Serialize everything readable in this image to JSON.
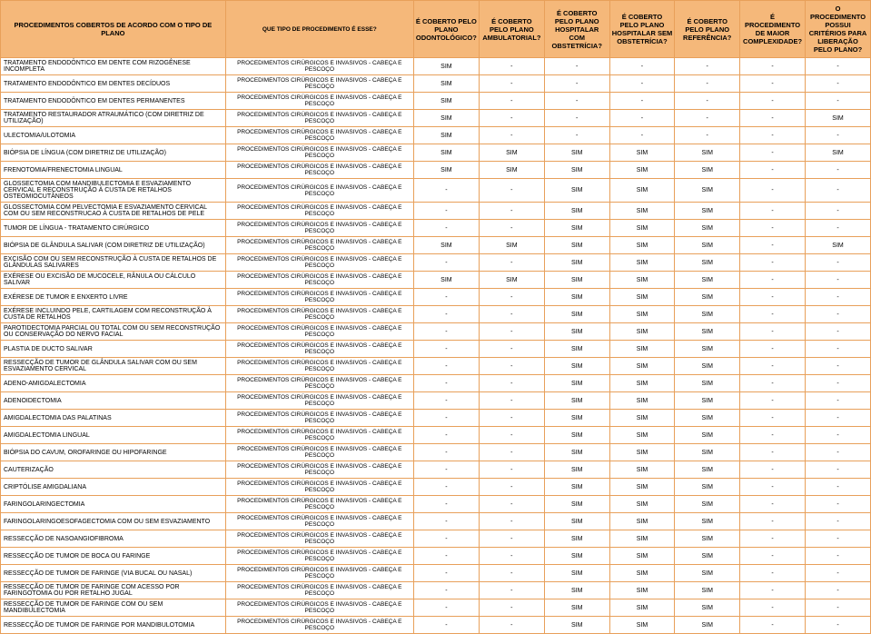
{
  "headers": [
    "PROCEDIMENTOS COBERTOS DE ACORDO COM O TIPO DE PLANO",
    "QUE TIPO DE PROCEDIMENTO É ESSE?",
    "É COBERTO PELO PLANO ODONTOLÓGICO?",
    "É COBERTO PELO PLANO AMBULATORIAL?",
    "É COBERTO PELO PLANO HOSPITALAR COM OBSTETRÍCIA?",
    "É COBERTO PELO PLANO HOSPITALAR SEM OBSTETRÍCIA?",
    "É COBERTO PELO PLANO REFERÊNCIA?",
    "É PROCEDIMENTO DE MAIOR COMPLEXIDADE?",
    "O PROCEDIMENTO POSSUI CRITÉRIOS PARA LIBERAÇÃO PELO PLANO?"
  ],
  "typeText": "PROCEDIMENTOS CIRÚRGICOS E INVASIVOS - CABEÇA E PESCOÇO",
  "rows": [
    {
      "p": "TRATAMENTO ENDODÔNTICO EM DENTE COM RIZOGÊNESE INCOMPLETA",
      "c": [
        "SIM",
        "-",
        "-",
        "-",
        "-",
        "-",
        "-"
      ]
    },
    {
      "p": "TRATAMENTO ENDODÔNTICO EM DENTES DECÍDUOS",
      "c": [
        "SIM",
        "-",
        "-",
        "-",
        "-",
        "-",
        "-"
      ]
    },
    {
      "p": "TRATAMENTO ENDODÔNTICO EM DENTES PERMANENTES",
      "c": [
        "SIM",
        "-",
        "-",
        "-",
        "-",
        "-",
        "-"
      ]
    },
    {
      "p": "TRATAMENTO RESTAURADOR ATRAUMÁTICO (COM DIRETRIZ DE UTILIZAÇÃO)",
      "c": [
        "SIM",
        "-",
        "-",
        "-",
        "-",
        "-",
        "SIM"
      ]
    },
    {
      "p": "ULECTOMIA/ULOTOMIA",
      "c": [
        "SIM",
        "-",
        "-",
        "-",
        "-",
        "-",
        "-"
      ]
    },
    {
      "p": "BIÓPSIA DE LÍNGUA (COM DIRETRIZ DE UTILIZAÇÃO)",
      "c": [
        "SIM",
        "SIM",
        "SIM",
        "SIM",
        "SIM",
        "-",
        "SIM"
      ]
    },
    {
      "p": "FRENOTOMIA/FRENECTOMIA  LINGUAL",
      "c": [
        "SIM",
        "SIM",
        "SIM",
        "SIM",
        "SIM",
        "-",
        "-"
      ]
    },
    {
      "p": "GLOSSECTOMIA COM MANDIBULECTOMIA E ESVAZIAMENTO CERVICAL E RECONSTRUÇÃO À CUSTA DE RETALHOS OSTEOMIOCUTÂNEOS",
      "c": [
        "-",
        "-",
        "SIM",
        "SIM",
        "SIM",
        "-",
        "-"
      ]
    },
    {
      "p": "GLOSSECTOMIA COM PELVECTOMIA E ESVAZIAMENTO CERVICAL COM OU SEM RECONSTRUCAO À CUSTA DE RETALHOS DE PELE",
      "c": [
        "-",
        "-",
        "SIM",
        "SIM",
        "SIM",
        "-",
        "-"
      ]
    },
    {
      "p": "TUMOR DE LÍNGUA - TRATAMENTO CIRÚRGICO",
      "c": [
        "-",
        "-",
        "SIM",
        "SIM",
        "SIM",
        "-",
        "-"
      ]
    },
    {
      "p": "BIÓPSIA DE GLÂNDULA SALIVAR (COM DIRETRIZ DE UTILIZAÇÃO)",
      "c": [
        "SIM",
        "SIM",
        "SIM",
        "SIM",
        "SIM",
        "-",
        "SIM"
      ]
    },
    {
      "p": "EXCISÃO COM OU SEM RECONSTRUÇÃO À CUSTA DE RETALHOS DE GLÂNDULAS SALIVARES",
      "c": [
        "-",
        "-",
        "SIM",
        "SIM",
        "SIM",
        "-",
        "-"
      ]
    },
    {
      "p": "EXÉRESE OU EXCISÃO DE MUCOCELE, RÂNULA OU CÁLCULO SALIVAR",
      "c": [
        "SIM",
        "SIM",
        "SIM",
        "SIM",
        "SIM",
        "-",
        "-"
      ]
    },
    {
      "p": "EXÉRESE DE TUMOR E ENXERTO LIVRE",
      "c": [
        "-",
        "-",
        "SIM",
        "SIM",
        "SIM",
        "-",
        "-"
      ]
    },
    {
      "p": "EXÉRESE INCLUINDO PELE, CARTILAGEM COM RECONSTRUÇÃO À CUSTA DE RETALHOS",
      "c": [
        "-",
        "-",
        "SIM",
        "SIM",
        "SIM",
        "-",
        "-"
      ]
    },
    {
      "p": "PAROTIDECTOMIA PARCIAL OU TOTAL COM OU SEM RECONSTRUÇÃO  OU  CONSERVAÇÃO DO NERVO FACIAL",
      "c": [
        "-",
        "-",
        "SIM",
        "SIM",
        "SIM",
        "-",
        "-"
      ]
    },
    {
      "p": "PLASTIA DE DUCTO SALIVAR",
      "c": [
        "-",
        "-",
        "SIM",
        "SIM",
        "SIM",
        "-",
        "-"
      ]
    },
    {
      "p": "RESSECÇÃO DE TUMOR DE GLÂNDULA SALIVAR COM OU SEM ESVAZIAMENTO CERVICAL",
      "c": [
        "-",
        "-",
        "SIM",
        "SIM",
        "SIM",
        "-",
        "-"
      ]
    },
    {
      "p": "ADENO-AMIGDALECTOMIA",
      "c": [
        "-",
        "-",
        "SIM",
        "SIM",
        "SIM",
        "-",
        "-"
      ]
    },
    {
      "p": "ADENOIDECTOMIA",
      "c": [
        "-",
        "-",
        "SIM",
        "SIM",
        "SIM",
        "-",
        "-"
      ]
    },
    {
      "p": "AMIGDALECTOMIA DAS PALATINAS",
      "c": [
        "-",
        "-",
        "SIM",
        "SIM",
        "SIM",
        "-",
        "-"
      ]
    },
    {
      "p": "AMIGDALECTOMIA LINGUAL",
      "c": [
        "-",
        "-",
        "SIM",
        "SIM",
        "SIM",
        "-",
        "-"
      ]
    },
    {
      "p": "BIÓPSIA DO CAVUM, OROFARINGE OU HIPOFARINGE",
      "c": [
        "-",
        "-",
        "SIM",
        "SIM",
        "SIM",
        "-",
        "-"
      ]
    },
    {
      "p": "CAUTERIZAÇÃO",
      "c": [
        "-",
        "-",
        "SIM",
        "SIM",
        "SIM",
        "-",
        "-"
      ]
    },
    {
      "p": "CRIPTÓLISE AMIGDALIANA",
      "c": [
        "-",
        "-",
        "SIM",
        "SIM",
        "SIM",
        "-",
        "-"
      ]
    },
    {
      "p": "FARINGOLARINGECTOMIA",
      "c": [
        "-",
        "-",
        "SIM",
        "SIM",
        "SIM",
        "-",
        "-"
      ]
    },
    {
      "p": "FARINGOLARINGOESOFAGECTOMIA COM OU SEM ESVAZIAMENTO",
      "c": [
        "-",
        "-",
        "SIM",
        "SIM",
        "SIM",
        "-",
        "-"
      ]
    },
    {
      "p": "RESSECÇÃO DE NASOANGIOFIBROMA",
      "c": [
        "-",
        "-",
        "SIM",
        "SIM",
        "SIM",
        "-",
        "-"
      ]
    },
    {
      "p": "RESSECÇÃO DE TUMOR DE BOCA OU FARINGE",
      "c": [
        "-",
        "-",
        "SIM",
        "SIM",
        "SIM",
        "-",
        "-"
      ]
    },
    {
      "p": "RESSECÇÃO DE TUMOR DE FARINGE (VIA BUCAL OU NASAL)",
      "c": [
        "-",
        "-",
        "SIM",
        "SIM",
        "SIM",
        "-",
        "-"
      ]
    },
    {
      "p": "RESSECÇÃO DE TUMOR DE FARINGE COM ACESSO POR FARINGOTOMIA OU POR RETALHO JUGAL",
      "c": [
        "-",
        "-",
        "SIM",
        "SIM",
        "SIM",
        "-",
        "-"
      ]
    },
    {
      "p": "RESSECÇÃO DE TUMOR DE FARINGE COM OU SEM MANDIBULECTOMIA",
      "c": [
        "-",
        "-",
        "SIM",
        "SIM",
        "SIM",
        "-",
        "-"
      ]
    },
    {
      "p": "RESSECÇÃO DE TUMOR DE FARINGE POR MANDIBULOTOMIA",
      "c": [
        "-",
        "-",
        "SIM",
        "SIM",
        "SIM",
        "-",
        "-"
      ]
    }
  ]
}
